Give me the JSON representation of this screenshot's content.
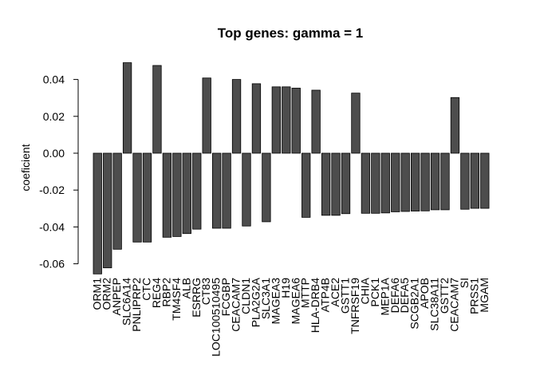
{
  "chart_data": {
    "type": "bar",
    "title": "Top genes: gamma =  1",
    "xlabel": "",
    "ylabel": "coeficient",
    "ylim": [
      -0.066,
      0.05
    ],
    "yticks": [
      "-0.06",
      "-0.04",
      "-0.02",
      "0.00",
      "0.02",
      "0.04"
    ],
    "ytick_values": [
      -0.06,
      -0.04,
      -0.02,
      0.0,
      0.02,
      0.04
    ],
    "bar_color": "#4d4d4d",
    "categories": [
      "ORM1",
      "ORM2",
      "ANPEP",
      "SLC6A14",
      "PNLIPRP2",
      "CTC",
      "REG4",
      "RBP2",
      "TM4SF4",
      "ALB",
      "ESRRG",
      "CT83",
      "LOC100510495",
      "FCGBP",
      "CEACAM7",
      "CLDN1",
      "PLA2G2A",
      "SLC3A1",
      "MAGEA3",
      "H19",
      "MAGEA6",
      "MTTP",
      "HLA-DRB4",
      "ATP4B",
      "ACE2",
      "GSTT1",
      "TNFRSF19",
      "CHIA",
      "PCK1",
      "MEP1A",
      "DEFA6",
      "DEFA5",
      "SCGB2A1",
      "APOB",
      "SLC38A11",
      "GSTT2",
      "CEACAM7",
      "SI",
      "PRSS1",
      "MGAM"
    ],
    "values": [
      -0.0655,
      -0.0622,
      -0.0521,
      0.0491,
      -0.0482,
      -0.0482,
      0.0476,
      -0.0456,
      -0.0452,
      -0.0436,
      -0.0412,
      0.0408,
      -0.0407,
      -0.0407,
      0.04,
      -0.0395,
      0.0377,
      -0.0372,
      0.036,
      0.036,
      0.0353,
      -0.0348,
      0.0342,
      -0.0337,
      -0.0337,
      -0.0328,
      0.0326,
      -0.0326,
      -0.0326,
      -0.0324,
      -0.0318,
      -0.0316,
      -0.0314,
      -0.0313,
      -0.0307,
      -0.0307,
      0.0302,
      -0.0304,
      -0.0299,
      -0.0299
    ]
  }
}
